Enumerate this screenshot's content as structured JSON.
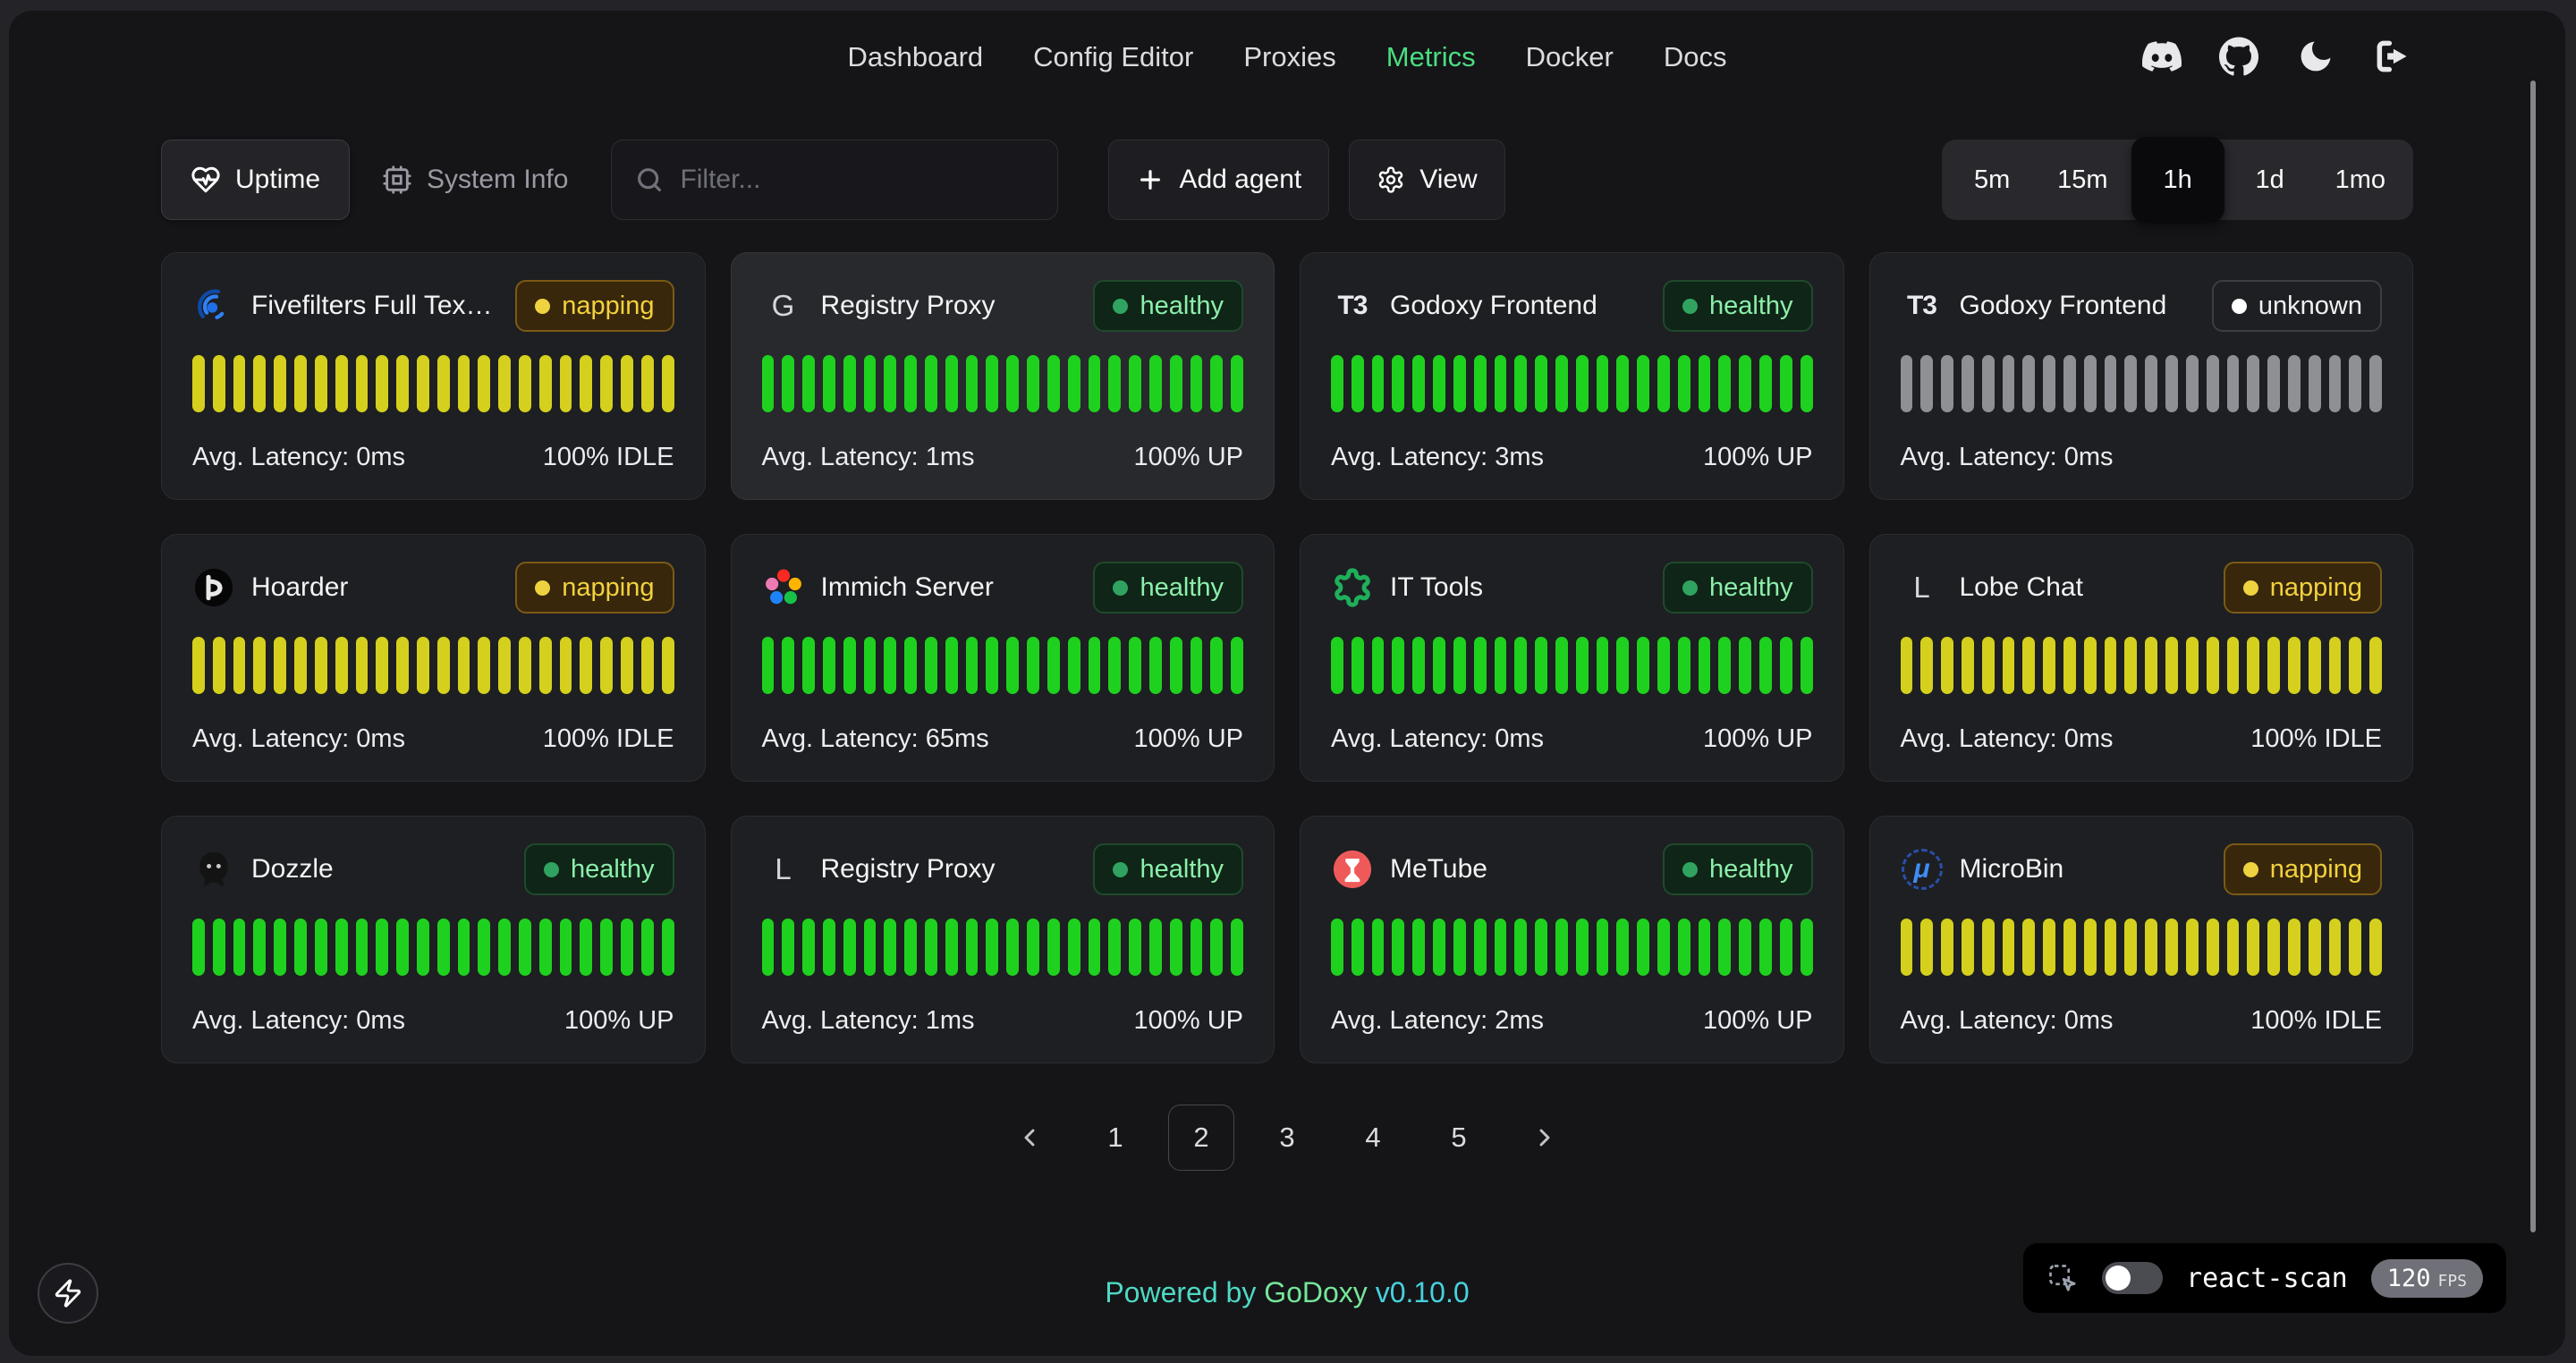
{
  "nav": {
    "items": [
      {
        "label": "Dashboard",
        "active": false
      },
      {
        "label": "Config Editor",
        "active": false
      },
      {
        "label": "Proxies",
        "active": false
      },
      {
        "label": "Metrics",
        "active": true
      },
      {
        "label": "Docker",
        "active": false
      },
      {
        "label": "Docs",
        "active": false
      }
    ]
  },
  "toolbar": {
    "tabs": [
      {
        "label": "Uptime",
        "active": true
      },
      {
        "label": "System Info",
        "active": false
      }
    ],
    "filter_placeholder": "Filter...",
    "add_agent_label": "Add agent",
    "view_label": "View"
  },
  "time_ranges": {
    "options": [
      {
        "label": "5m",
        "active": false
      },
      {
        "label": "15m",
        "active": false
      },
      {
        "label": "1h",
        "active": true
      },
      {
        "label": "1d",
        "active": false
      },
      {
        "label": "1mo",
        "active": false
      }
    ]
  },
  "bars_per_card": 24,
  "cards": [
    {
      "name": "Fivefilters Full Tex…",
      "status": "napping",
      "bar_state": "idle",
      "latency": "Avg. Latency: 0ms",
      "uptime": "100% IDLE",
      "highlighted": false,
      "icon": {
        "name": "fivefilters-icon",
        "type": "svg",
        "svg": "fivefilters"
      }
    },
    {
      "name": "Registry Proxy",
      "status": "healthy",
      "bar_state": "up",
      "latency": "Avg. Latency: 1ms",
      "uptime": "100% UP",
      "highlighted": true,
      "icon": {
        "name": "letter-g-icon",
        "type": "letter",
        "value": "G"
      }
    },
    {
      "name": "Godoxy Frontend",
      "status": "healthy",
      "bar_state": "up",
      "latency": "Avg. Latency: 3ms",
      "uptime": "100% UP",
      "highlighted": false,
      "icon": {
        "name": "t3-logo-icon",
        "type": "letter",
        "value": "T3",
        "style": "t3"
      }
    },
    {
      "name": "Godoxy Frontend",
      "status": "unknown",
      "bar_state": "unknown",
      "latency": "Avg. Latency: 0ms",
      "uptime": "",
      "highlighted": false,
      "icon": {
        "name": "t3-logo-icon",
        "type": "letter",
        "value": "T3",
        "style": "t3"
      }
    },
    {
      "name": "Hoarder",
      "status": "napping",
      "bar_state": "idle",
      "latency": "Avg. Latency: 0ms",
      "uptime": "100% IDLE",
      "highlighted": false,
      "icon": {
        "name": "hoarder-icon",
        "type": "svg",
        "svg": "hoarder"
      }
    },
    {
      "name": "Immich Server",
      "status": "healthy",
      "bar_state": "up",
      "latency": "Avg. Latency: 65ms",
      "uptime": "100% UP",
      "highlighted": false,
      "icon": {
        "name": "immich-icon",
        "type": "svg",
        "svg": "immich"
      }
    },
    {
      "name": "IT Tools",
      "status": "healthy",
      "bar_state": "up",
      "latency": "Avg. Latency: 0ms",
      "uptime": "100% UP",
      "highlighted": false,
      "icon": {
        "name": "it-tools-icon",
        "type": "svg",
        "svg": "ittools"
      }
    },
    {
      "name": "Lobe Chat",
      "status": "napping",
      "bar_state": "idle",
      "latency": "Avg. Latency: 0ms",
      "uptime": "100% IDLE",
      "highlighted": false,
      "icon": {
        "name": "letter-l-icon",
        "type": "letter",
        "value": "L"
      }
    },
    {
      "name": "Dozzle",
      "status": "healthy",
      "bar_state": "up",
      "latency": "Avg. Latency: 0ms",
      "uptime": "100% UP",
      "highlighted": false,
      "icon": {
        "name": "dozzle-icon",
        "type": "svg",
        "svg": "dozzle"
      }
    },
    {
      "name": "Registry Proxy",
      "status": "healthy",
      "bar_state": "up",
      "latency": "Avg. Latency: 1ms",
      "uptime": "100% UP",
      "highlighted": false,
      "icon": {
        "name": "letter-l-icon",
        "type": "letter",
        "value": "L"
      }
    },
    {
      "name": "MeTube",
      "status": "healthy",
      "bar_state": "up",
      "latency": "Avg. Latency: 2ms",
      "uptime": "100% UP",
      "highlighted": false,
      "icon": {
        "name": "metube-icon",
        "type": "svg",
        "svg": "metube"
      }
    },
    {
      "name": "MicroBin",
      "status": "napping",
      "bar_state": "idle",
      "latency": "Avg. Latency: 0ms",
      "uptime": "100% IDLE",
      "highlighted": false,
      "icon": {
        "name": "microbin-icon",
        "type": "letter",
        "value": "μ",
        "style": "microbin"
      }
    }
  ],
  "pagination": {
    "pages": [
      {
        "label": "1",
        "current": false
      },
      {
        "label": "2",
        "current": true
      },
      {
        "label": "3",
        "current": false
      },
      {
        "label": "4",
        "current": false
      },
      {
        "label": "5",
        "current": false
      }
    ]
  },
  "footer": {
    "powered_by": "Powered by",
    "brand": "GoDoxy",
    "version": "v0.10.0"
  },
  "react_scan": {
    "label": "react-scan",
    "fps": "120",
    "fps_unit": "FPS",
    "enabled": false
  },
  "colors": {
    "accent_green": "#4ade80",
    "bar_up": "#1fd11f",
    "bar_idle": "#d5d01d",
    "bar_unknown": "#8f9095",
    "napping_text": "#f2d23d",
    "healthy_text": "#8cefab"
  }
}
